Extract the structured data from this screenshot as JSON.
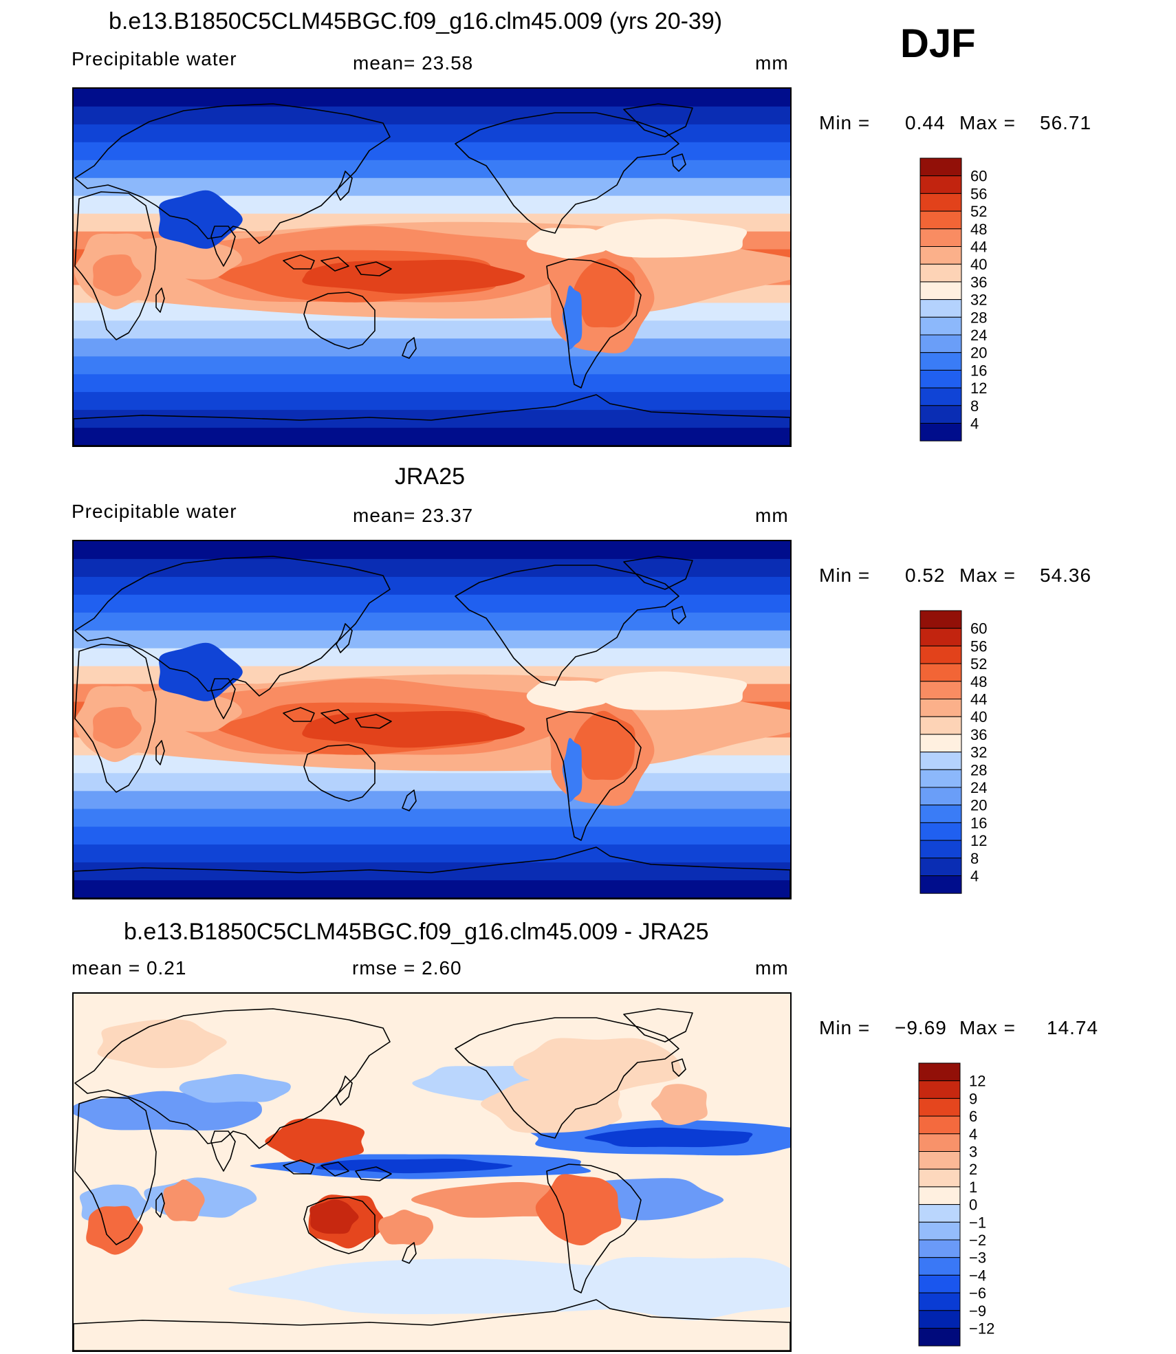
{
  "season": "DJF",
  "colors": {
    "abs_scale": [
      "#000d8c",
      "#0a2db4",
      "#1044d6",
      "#2060f0",
      "#3a7cf6",
      "#6a9ef8",
      "#8cb8fb",
      "#b4d2fd",
      "#d8e9fe",
      "#fff0e0",
      "#fdd3b6",
      "#fbb08a",
      "#f98c62",
      "#f26536",
      "#e2421b",
      "#c2240f",
      "#921008"
    ],
    "diff_scale": [
      "#000a7c",
      "#0024b0",
      "#0a3cd4",
      "#1a56ee",
      "#3a78f6",
      "#6a9af8",
      "#94bcfb",
      "#bad6fd",
      "#daeafe",
      "#fff0e0",
      "#fdd8bd",
      "#fbb896",
      "#f8926a",
      "#f46a3e",
      "#e5461e",
      "#c72810",
      "#921008"
    ],
    "coast": "#000000"
  },
  "chart_data": [
    {
      "type": "heatmap",
      "title": "b.e13.B1850C5CLM45BGC.f09_g16.clm45.009 (yrs 20-39)",
      "left_label": "Precipitable  water",
      "center_label": "mean=   23.58",
      "units": "mm",
      "min_label": "Min  =",
      "min_value": "0.44",
      "max_label": "Max  =",
      "max_value": "56.71",
      "colorbar_levels": [
        "60",
        "56",
        "52",
        "48",
        "44",
        "40",
        "36",
        "32",
        "28",
        "24",
        "20",
        "16",
        "12",
        "8",
        "4"
      ]
    },
    {
      "type": "heatmap",
      "title": "JRA25",
      "left_label": "Precipitable  water",
      "center_label": "mean=   23.37",
      "units": "mm",
      "min_label": "Min  =",
      "min_value": "0.52",
      "max_label": "Max  =",
      "max_value": "54.36",
      "colorbar_levels": [
        "60",
        "56",
        "52",
        "48",
        "44",
        "40",
        "36",
        "32",
        "28",
        "24",
        "20",
        "16",
        "12",
        "8",
        "4"
      ]
    },
    {
      "type": "heatmap",
      "title": "b.e13.B1850C5CLM45BGC.f09_g16.clm45.009 - JRA25",
      "left_label": "mean  =     0.21",
      "center_label": "rmse  =     2.60",
      "units": "mm",
      "min_label": "Min  =",
      "min_value": "−9.69",
      "max_label": "Max  =",
      "max_value": "14.74",
      "colorbar_levels": [
        "12",
        "9",
        "6",
        "4",
        "3",
        "2",
        "1",
        "0",
        "−1",
        "−2",
        "−3",
        "−4",
        "−6",
        "−9",
        "−12"
      ]
    }
  ]
}
